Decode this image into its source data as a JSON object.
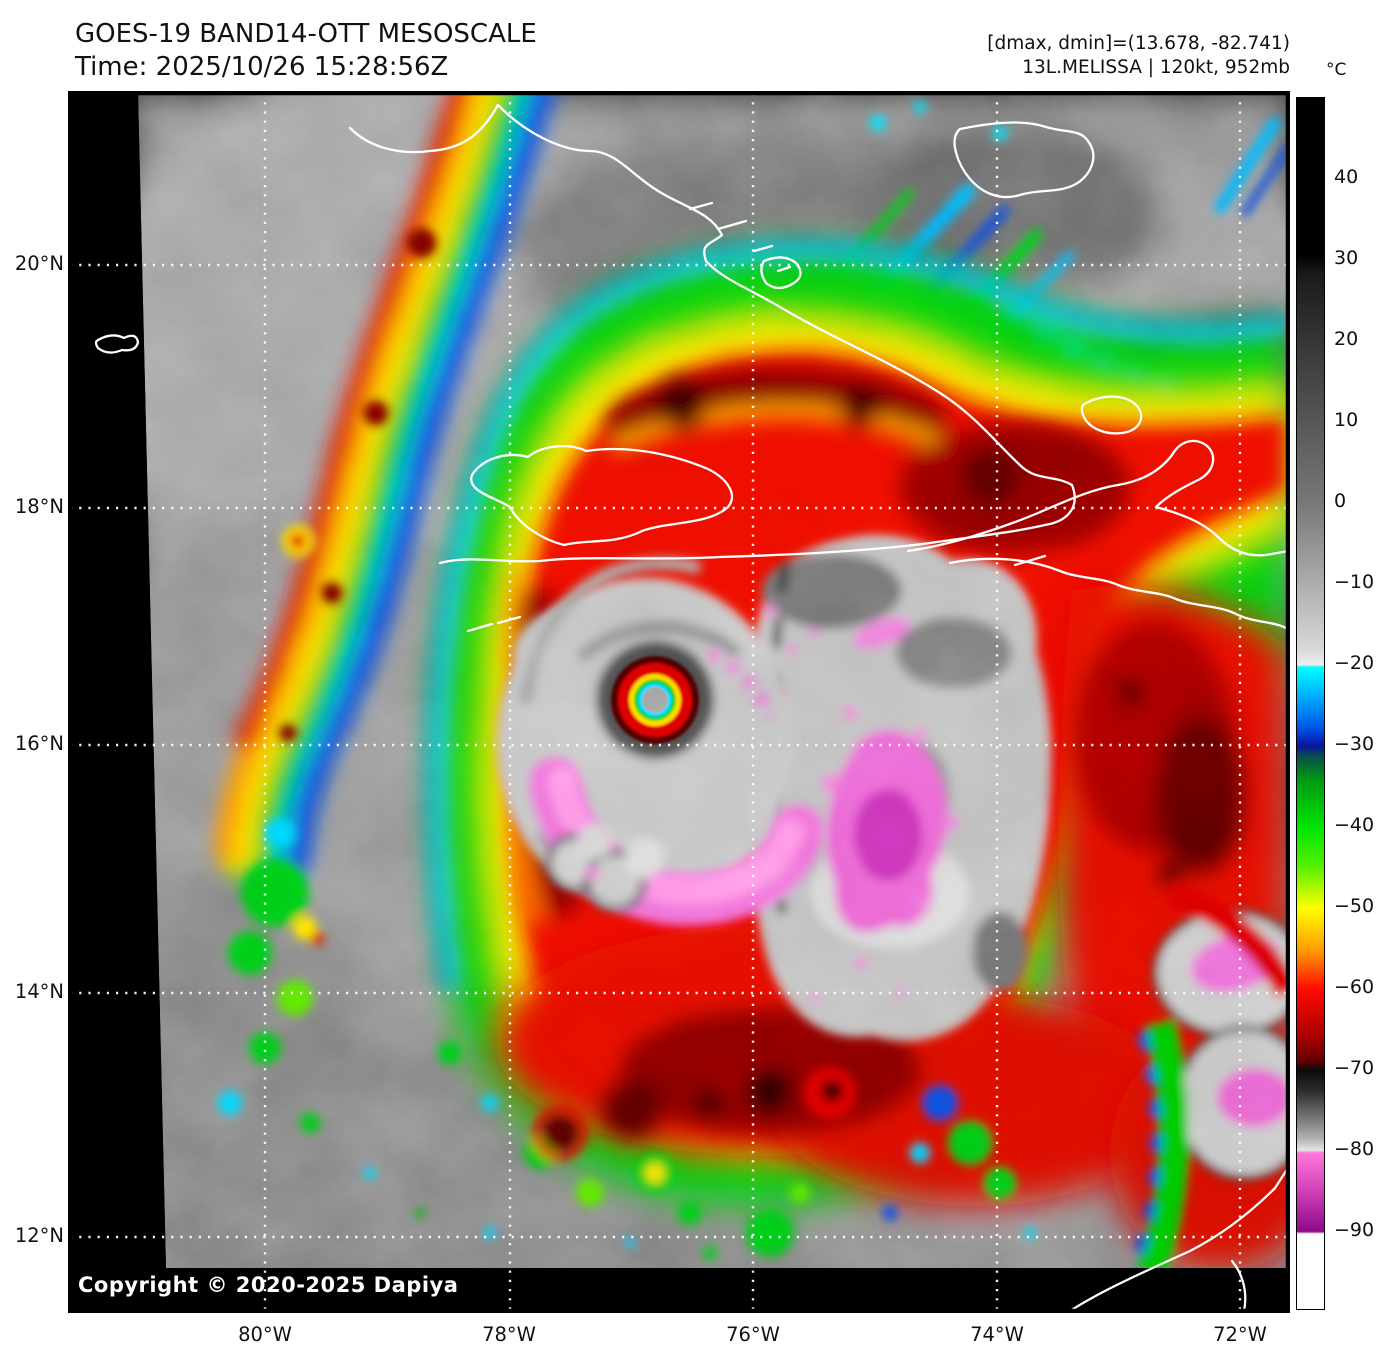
{
  "header": {
    "title": "GOES-19 BAND14-OTT MESOSCALE",
    "time_line": "Time: 2025/10/26 15:28:56Z",
    "dmax_dmin": "[dmax, dmin]=(13.678, -82.741)",
    "storm_info": "13L.MELISSA | 120kt, 952mb"
  },
  "map": {
    "copyright": "Copyright © 2020-2025 Dapiya",
    "satellite": "GOES-19",
    "band": "BAND14-OTT",
    "sector": "MESOSCALE",
    "storm_id": "13L",
    "storm_name": "MELISSA",
    "intensity_kt": "120kt",
    "pressure_mb": "952mb"
  },
  "axes": {
    "lat_labels": [
      "20°N",
      "18°N",
      "16°N",
      "14°N",
      "12°N"
    ],
    "lon_labels": [
      "80°W",
      "78°W",
      "76°W",
      "74°W",
      "72°W"
    ]
  },
  "colorbar": {
    "unit": "°C",
    "tick_labels": [
      "40",
      "30",
      "20",
      "10",
      "0",
      "−10",
      "−20",
      "−30",
      "−40",
      "−50",
      "−60",
      "−70",
      "−80",
      "−90"
    ],
    "gradient_stops": [
      [
        0,
        "#000000"
      ],
      [
        13.0,
        "#000000"
      ],
      [
        14.5,
        "#1a1a1a"
      ],
      [
        33.5,
        "#787878"
      ],
      [
        45.5,
        "#d8d8d8"
      ],
      [
        46.8,
        "#eeeeee"
      ],
      [
        47.0,
        "#00ffff"
      ],
      [
        49.5,
        "#00aaff"
      ],
      [
        52.0,
        "#0055e6"
      ],
      [
        53.5,
        "#0a14a0"
      ],
      [
        54.3,
        "#0a4a50"
      ],
      [
        56.2,
        "#009614"
      ],
      [
        60.2,
        "#00e600"
      ],
      [
        63.5,
        "#55f000"
      ],
      [
        66.9,
        "#ffff00"
      ],
      [
        70.5,
        "#ff9600"
      ],
      [
        73.6,
        "#ff0a00"
      ],
      [
        77.5,
        "#aa0000"
      ],
      [
        79.5,
        "#640000"
      ],
      [
        80.3,
        "#0a0a0a"
      ],
      [
        82.0,
        "#2d2d2d"
      ],
      [
        84.0,
        "#6f6f6f"
      ],
      [
        86.0,
        "#b4b4b4"
      ],
      [
        86.9,
        "#e6e6e6"
      ],
      [
        87.1,
        "#ff78dc"
      ],
      [
        90.5,
        "#cc3cb4"
      ],
      [
        93.6,
        "#8c0a8c"
      ],
      [
        93.8,
        "#ffffff"
      ],
      [
        100,
        "#ffffff"
      ]
    ]
  }
}
